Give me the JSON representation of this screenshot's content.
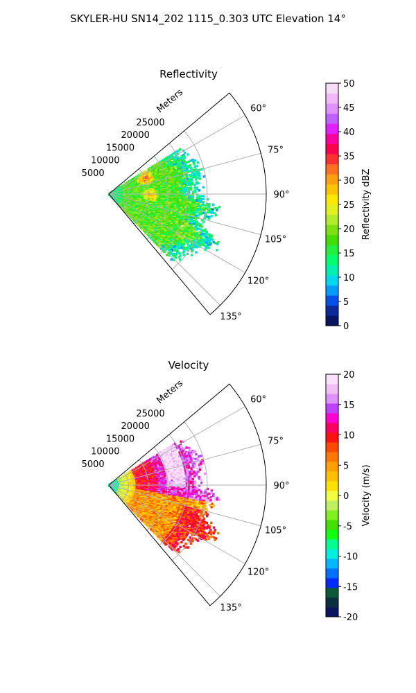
{
  "figure": {
    "suptitle": "SKYLER-HU  SN14_202  1115_0.303 UTC Elevation 14°"
  },
  "chart_data": [
    {
      "type": "heatmap",
      "subtype": "polar-sector-ppi",
      "title": "Reflectivity",
      "radial_axis_label": "Meters",
      "radial_range": [
        0,
        40000
      ],
      "radial_ticks": [
        5000,
        10000,
        15000,
        20000,
        25000
      ],
      "radial_tick_labels": [
        "5000",
        "10000",
        "15000",
        "20000",
        "25000"
      ],
      "azimuth_range_deg": [
        50,
        140
      ],
      "azimuth_ticks_deg": [
        60,
        75,
        90,
        105,
        120,
        135
      ],
      "azimuth_tick_labels": [
        "60°",
        "75°",
        "90°",
        "105°",
        "120°",
        "135°"
      ],
      "grid": true,
      "colorbar": {
        "label": "Reflectivity dBZ",
        "min": 0,
        "max": 50,
        "ticks": [
          0,
          5,
          10,
          15,
          20,
          25,
          30,
          35,
          40,
          45,
          50
        ],
        "colors": [
          "#0a1560",
          "#0a2a9a",
          "#0650e8",
          "#049bff",
          "#00d8f0",
          "#00f0b0",
          "#00ff70",
          "#22f040",
          "#44dd00",
          "#7de010",
          "#b2ec2c",
          "#e0f020",
          "#ffe800",
          "#ffc400",
          "#ffa010",
          "#ff7020",
          "#ff3030",
          "#ff0050",
          "#ff00a0",
          "#e020ff",
          "#c060ff",
          "#e090ff",
          "#f0b8f5",
          "#f8ddf8"
        ]
      },
      "data_summary": {
        "dominant_dbz_range": [
          15,
          25
        ],
        "max_dbz_cores": [
          35,
          38
        ],
        "max_range_m": 30000
      }
    },
    {
      "type": "heatmap",
      "subtype": "polar-sector-ppi",
      "title": "Velocity",
      "radial_axis_label": "Meters",
      "radial_range": [
        0,
        40000
      ],
      "radial_ticks": [
        5000,
        10000,
        15000,
        20000,
        25000
      ],
      "radial_tick_labels": [
        "5000",
        "10000",
        "15000",
        "20000",
        "25000"
      ],
      "azimuth_range_deg": [
        50,
        140
      ],
      "azimuth_ticks_deg": [
        60,
        75,
        90,
        105,
        120,
        135
      ],
      "azimuth_tick_labels": [
        "60°",
        "75°",
        "90°",
        "105°",
        "120°",
        "135°"
      ],
      "grid": true,
      "colorbar": {
        "label": "Velocity (m/s)",
        "min": -20,
        "max": 20,
        "ticks": [
          -20,
          -15,
          -10,
          -5,
          0,
          5,
          10,
          15,
          20
        ],
        "colors": [
          "#0a1560",
          "#0a3040",
          "#0b5a3a",
          "#002aff",
          "#0070ff",
          "#00b8ff",
          "#00f0e0",
          "#00ff90",
          "#10ff10",
          "#44e000",
          "#80f020",
          "#c0f060",
          "#f0ff40",
          "#ffe000",
          "#ffc000",
          "#ffa000",
          "#ff7800",
          "#ff4800",
          "#ff1010",
          "#ff0060",
          "#ff00d0",
          "#c040ff",
          "#e090ff",
          "#f0c0f5",
          "#fae0fa"
        ]
      },
      "data_summary": {
        "dominant_velocity_range_ms": [
          0,
          12
        ],
        "near_radar_velocity_ms": [
          -8,
          -3
        ],
        "max_range_m": 30000
      }
    }
  ]
}
